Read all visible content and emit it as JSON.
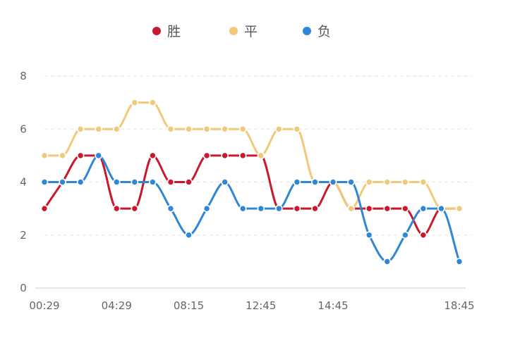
{
  "chart_data": {
    "type": "line",
    "smooth": true,
    "title": "",
    "xlabel": "",
    "ylabel": "",
    "ylim": [
      0,
      8
    ],
    "y_ticks": [
      0,
      2,
      4,
      6,
      8
    ],
    "grid": true,
    "legend_position": "top",
    "x_tick_labels": [
      "00:29",
      "04:29",
      "08:15",
      "12:45",
      "14:45",
      "18:45"
    ],
    "x_tick_indices": [
      0,
      4,
      8,
      12,
      16,
      23
    ],
    "point_count": 24,
    "series": [
      {
        "name": "胜",
        "color": "#c8192e",
        "values": [
          3,
          4,
          5,
          5,
          3,
          3,
          5,
          4,
          4,
          5,
          5,
          5,
          5,
          3,
          3,
          3,
          4,
          3,
          3,
          3,
          3,
          2,
          3,
          3
        ]
      },
      {
        "name": "平",
        "color": "#f2c879",
        "values": [
          5,
          5,
          6,
          6,
          6,
          7,
          7,
          6,
          6,
          6,
          6,
          6,
          5,
          6,
          6,
          4,
          4,
          3,
          4,
          4,
          4,
          4,
          3,
          3
        ]
      },
      {
        "name": "负",
        "color": "#2e86d6",
        "values": [
          4,
          4,
          4,
          5,
          4,
          4,
          4,
          3,
          2,
          3,
          4,
          3,
          3,
          3,
          4,
          4,
          4,
          4,
          2,
          1,
          2,
          3,
          3,
          1
        ]
      }
    ]
  }
}
